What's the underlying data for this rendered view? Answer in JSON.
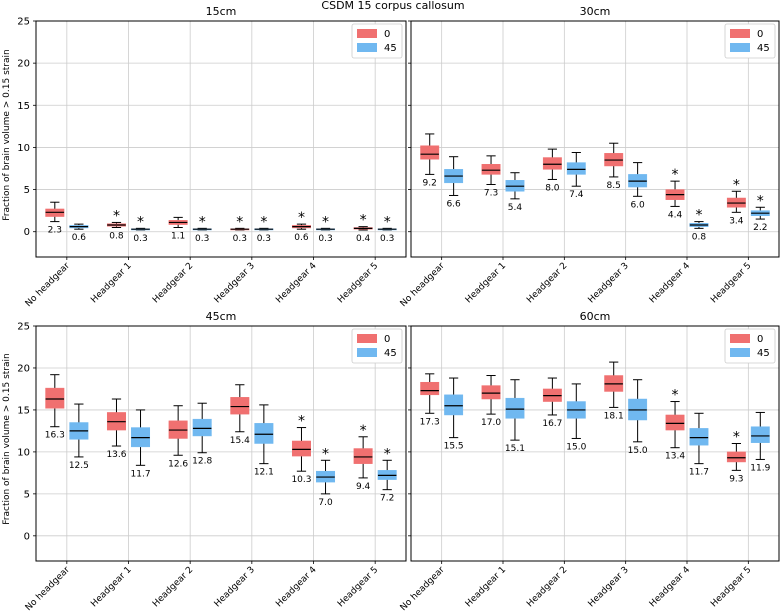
{
  "figure": {
    "suptitle": "CSDM 15 corpus callosum",
    "ylabel": "Fraction of brain volume > 0.15 strain"
  },
  "colors": {
    "series_0": "#f07070",
    "series_45": "#70b8f0",
    "median": "#000000",
    "grid": "#cccccc"
  },
  "chart_data": [
    {
      "type": "boxplot",
      "title": "15cm",
      "categories": [
        "No headgear",
        "Headgear 1",
        "Headgear 2",
        "Headgear 3",
        "Headgear 4",
        "Headgear 5"
      ],
      "ylim": [
        -3,
        25
      ],
      "yticks": [
        0,
        5,
        10,
        15,
        20,
        25
      ],
      "legend": {
        "entries": [
          "0",
          "45"
        ],
        "location": "top-right"
      },
      "series": [
        {
          "name": "0",
          "labels": [
            "2.3",
            "0.8",
            "1.1",
            "0.3",
            "0.6",
            "0.4"
          ],
          "boxes": [
            {
              "whislo": 1.2,
              "q1": 1.8,
              "med": 2.3,
              "q3": 2.7,
              "whishi": 3.5
            },
            {
              "whislo": 0.5,
              "q1": 0.65,
              "med": 0.8,
              "q3": 0.95,
              "whishi": 1.1
            },
            {
              "whislo": 0.5,
              "q1": 0.85,
              "med": 1.1,
              "q3": 1.35,
              "whishi": 1.7
            },
            {
              "whislo": 0.2,
              "q1": 0.25,
              "med": 0.3,
              "q3": 0.35,
              "whishi": 0.4
            },
            {
              "whislo": 0.3,
              "q1": 0.45,
              "med": 0.6,
              "q3": 0.75,
              "whishi": 0.9
            },
            {
              "whislo": 0.2,
              "q1": 0.3,
              "med": 0.4,
              "q3": 0.5,
              "whishi": 0.6
            }
          ],
          "stars": [
            false,
            true,
            false,
            true,
            true,
            true
          ]
        },
        {
          "name": "45",
          "labels": [
            "0.6",
            "0.3",
            "0.3",
            "0.3",
            "0.3",
            "0.3"
          ],
          "boxes": [
            {
              "whislo": 0.3,
              "q1": 0.45,
              "med": 0.6,
              "q3": 0.75,
              "whishi": 0.9
            },
            {
              "whislo": 0.2,
              "q1": 0.25,
              "med": 0.3,
              "q3": 0.35,
              "whishi": 0.4
            },
            {
              "whislo": 0.2,
              "q1": 0.25,
              "med": 0.3,
              "q3": 0.35,
              "whishi": 0.4
            },
            {
              "whislo": 0.2,
              "q1": 0.25,
              "med": 0.3,
              "q3": 0.35,
              "whishi": 0.4
            },
            {
              "whislo": 0.2,
              "q1": 0.25,
              "med": 0.3,
              "q3": 0.35,
              "whishi": 0.4
            },
            {
              "whislo": 0.2,
              "q1": 0.25,
              "med": 0.3,
              "q3": 0.35,
              "whishi": 0.4
            }
          ],
          "stars": [
            false,
            true,
            true,
            true,
            true,
            true
          ]
        }
      ]
    },
    {
      "type": "boxplot",
      "title": "30cm",
      "categories": [
        "No headgear",
        "Headgear 1",
        "Headgear 2",
        "Headgear 3",
        "Headgear 4",
        "Headgear 5"
      ],
      "ylim": [
        -3,
        25
      ],
      "yticks": [
        0,
        5,
        10,
        15,
        20,
        25
      ],
      "legend": {
        "entries": [
          "0",
          "45"
        ],
        "location": "top-right"
      },
      "series": [
        {
          "name": "0",
          "labels": [
            "9.2",
            "7.3",
            "8.0",
            "8.5",
            "4.4",
            "3.4"
          ],
          "boxes": [
            {
              "whislo": 6.8,
              "q1": 8.6,
              "med": 9.2,
              "q3": 10.2,
              "whishi": 11.6
            },
            {
              "whislo": 5.6,
              "q1": 6.8,
              "med": 7.3,
              "q3": 8.0,
              "whishi": 9.0
            },
            {
              "whislo": 6.2,
              "q1": 7.4,
              "med": 8.0,
              "q3": 8.8,
              "whishi": 9.8
            },
            {
              "whislo": 6.5,
              "q1": 7.8,
              "med": 8.5,
              "q3": 9.3,
              "whishi": 10.5
            },
            {
              "whislo": 3.0,
              "q1": 3.8,
              "med": 4.4,
              "q3": 5.0,
              "whishi": 6.0
            },
            {
              "whislo": 2.3,
              "q1": 2.9,
              "med": 3.4,
              "q3": 4.0,
              "whishi": 4.8
            }
          ],
          "stars": [
            false,
            false,
            false,
            false,
            true,
            true
          ]
        },
        {
          "name": "45",
          "labels": [
            "6.6",
            "5.4",
            "7.4",
            "6.0",
            "0.8",
            "2.2"
          ],
          "boxes": [
            {
              "whislo": 4.3,
              "q1": 5.8,
              "med": 6.6,
              "q3": 7.4,
              "whishi": 8.9
            },
            {
              "whislo": 3.9,
              "q1": 4.8,
              "med": 5.4,
              "q3": 6.1,
              "whishi": 7.0
            },
            {
              "whislo": 5.4,
              "q1": 6.8,
              "med": 7.4,
              "q3": 8.2,
              "whishi": 9.4
            },
            {
              "whislo": 4.2,
              "q1": 5.3,
              "med": 6.0,
              "q3": 6.8,
              "whishi": 8.2
            },
            {
              "whislo": 0.4,
              "q1": 0.6,
              "med": 0.8,
              "q3": 1.0,
              "whishi": 1.2
            },
            {
              "whislo": 1.5,
              "q1": 1.9,
              "med": 2.2,
              "q3": 2.5,
              "whishi": 2.9
            }
          ],
          "stars": [
            false,
            false,
            false,
            false,
            true,
            true
          ]
        }
      ]
    },
    {
      "type": "boxplot",
      "title": "45cm",
      "categories": [
        "No headgear",
        "Headgear 1",
        "Headgear 2",
        "Headgear 3",
        "Headgear 4",
        "Headgear 5"
      ],
      "ylim": [
        -3,
        25
      ],
      "yticks": [
        0,
        5,
        10,
        15,
        20,
        25
      ],
      "legend": {
        "entries": [
          "0",
          "45"
        ],
        "location": "top-right"
      },
      "series": [
        {
          "name": "0",
          "labels": [
            "16.3",
            "13.6",
            "12.6",
            "15.4",
            "10.3",
            "9.4"
          ],
          "boxes": [
            {
              "whislo": 13.0,
              "q1": 15.2,
              "med": 16.3,
              "q3": 17.6,
              "whishi": 19.2
            },
            {
              "whislo": 10.7,
              "q1": 12.6,
              "med": 13.6,
              "q3": 14.7,
              "whishi": 16.3
            },
            {
              "whislo": 9.6,
              "q1": 11.6,
              "med": 12.6,
              "q3": 13.7,
              "whishi": 15.5
            },
            {
              "whislo": 12.4,
              "q1": 14.5,
              "med": 15.4,
              "q3": 16.5,
              "whishi": 18.0
            },
            {
              "whislo": 7.7,
              "q1": 9.5,
              "med": 10.3,
              "q3": 11.3,
              "whishi": 12.9
            },
            {
              "whislo": 6.9,
              "q1": 8.6,
              "med": 9.4,
              "q3": 10.4,
              "whishi": 11.8
            }
          ],
          "stars": [
            false,
            false,
            false,
            false,
            true,
            true
          ]
        },
        {
          "name": "45",
          "labels": [
            "12.5",
            "11.7",
            "12.8",
            "12.1",
            "7.0",
            "7.2"
          ],
          "boxes": [
            {
              "whislo": 9.4,
              "q1": 11.5,
              "med": 12.5,
              "q3": 13.5,
              "whishi": 15.7
            },
            {
              "whislo": 8.4,
              "q1": 10.6,
              "med": 11.7,
              "q3": 12.9,
              "whishi": 15.0
            },
            {
              "whislo": 9.9,
              "q1": 11.9,
              "med": 12.8,
              "q3": 13.9,
              "whishi": 15.8
            },
            {
              "whislo": 8.6,
              "q1": 11.0,
              "med": 12.1,
              "q3": 13.4,
              "whishi": 15.6
            },
            {
              "whislo": 5.0,
              "q1": 6.4,
              "med": 7.0,
              "q3": 7.7,
              "whishi": 9.0
            },
            {
              "whislo": 5.5,
              "q1": 6.7,
              "med": 7.2,
              "q3": 7.8,
              "whishi": 9.0
            }
          ],
          "stars": [
            false,
            false,
            false,
            false,
            true,
            true
          ]
        }
      ]
    },
    {
      "type": "boxplot",
      "title": "60cm",
      "categories": [
        "No headgear",
        "Headgear 1",
        "Headgear 2",
        "Headgear 3",
        "Headgear 4",
        "Headgear 5"
      ],
      "ylim": [
        -3,
        25
      ],
      "yticks": [
        0,
        5,
        10,
        15,
        20,
        25
      ],
      "legend": {
        "entries": [
          "0",
          "45"
        ],
        "location": "top-right"
      },
      "series": [
        {
          "name": "0",
          "labels": [
            "17.3",
            "17.0",
            "16.7",
            "18.1",
            "13.4",
            "9.3"
          ],
          "boxes": [
            {
              "whislo": 14.6,
              "q1": 16.8,
              "med": 17.3,
              "q3": 18.3,
              "whishi": 19.3
            },
            {
              "whislo": 14.5,
              "q1": 16.3,
              "med": 17.0,
              "q3": 17.9,
              "whishi": 19.1
            },
            {
              "whislo": 14.4,
              "q1": 16.0,
              "med": 16.7,
              "q3": 17.5,
              "whishi": 18.8
            },
            {
              "whislo": 15.3,
              "q1": 17.2,
              "med": 18.1,
              "q3": 19.1,
              "whishi": 20.7
            },
            {
              "whislo": 10.5,
              "q1": 12.6,
              "med": 13.4,
              "q3": 14.4,
              "whishi": 16.0
            },
            {
              "whislo": 7.8,
              "q1": 8.8,
              "med": 9.3,
              "q3": 10.0,
              "whishi": 11.0
            }
          ],
          "stars": [
            false,
            false,
            false,
            false,
            true,
            true
          ]
        },
        {
          "name": "45",
          "labels": [
            "15.5",
            "15.1",
            "15.0",
            "15.0",
            "11.7",
            "11.9"
          ],
          "boxes": [
            {
              "whislo": 11.7,
              "q1": 14.4,
              "med": 15.5,
              "q3": 16.8,
              "whishi": 18.8
            },
            {
              "whislo": 11.4,
              "q1": 14.0,
              "med": 15.1,
              "q3": 16.4,
              "whishi": 18.6
            },
            {
              "whislo": 11.6,
              "q1": 14.0,
              "med": 15.0,
              "q3": 16.0,
              "whishi": 18.1
            },
            {
              "whislo": 11.2,
              "q1": 13.8,
              "med": 15.0,
              "q3": 16.3,
              "whishi": 18.6
            },
            {
              "whislo": 8.6,
              "q1": 10.8,
              "med": 11.7,
              "q3": 12.8,
              "whishi": 14.6
            },
            {
              "whislo": 9.1,
              "q1": 11.1,
              "med": 11.9,
              "q3": 13.0,
              "whishi": 14.7
            }
          ],
          "stars": [
            false,
            false,
            false,
            false,
            false,
            false
          ]
        }
      ]
    }
  ]
}
